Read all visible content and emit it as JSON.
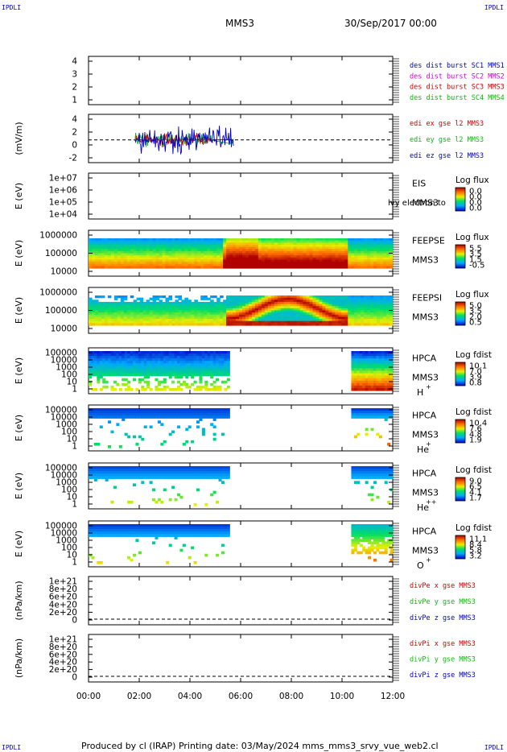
{
  "header": {
    "mark_tl": "IPDLI",
    "mark_tr": "IPDLI",
    "mark_bl": "IPDLI",
    "mark_br": "IPDLI",
    "spacecraft": "MMS3",
    "datetime": "30/Sep/2017 00:00"
  },
  "footer": {
    "text": "Produced by cl (IRAP)   Printing date: 03/May/2024   mms_mms3_srvy_vue_web2.cl"
  },
  "colors": {
    "red": "#d00000",
    "green": "#00c000",
    "blue": "#0000cc",
    "magenta": "#d000d0"
  },
  "chart_data": {
    "type": "heatmap",
    "x_axis": {
      "range": [
        "00:00",
        "12:00"
      ],
      "ticks": [
        "00:00",
        "02:00",
        "04:00",
        "06:00",
        "08:00",
        "10:00",
        "12:00"
      ]
    },
    "panels": [
      {
        "id": "des",
        "type": "line",
        "ylabel": "",
        "yticks": [
          "4",
          "3",
          "2",
          "1"
        ],
        "ylim": [
          0.7,
          4.3
        ],
        "legend": [
          {
            "label": "des dist burst SC1 MMS1",
            "color": "#0000cc"
          },
          {
            "label": "des dist burst SC2 MMS2",
            "color": "#d000d0"
          },
          {
            "label": "des dist burst SC3 MMS3",
            "color": "#d00000"
          },
          {
            "label": "des dist burst SC4 MMS4",
            "color": "#00c000"
          }
        ]
      },
      {
        "id": "edi",
        "type": "line",
        "ylabel": "(mV/m)",
        "yticks": [
          "4",
          "2",
          "0",
          "-2"
        ],
        "ylim": [
          -3.5,
          4.3
        ],
        "data_range": [
          "01:50",
          "05:55"
        ],
        "legend": [
          {
            "label": "edi ex gse l2 MMS3",
            "color": "#d00000"
          },
          {
            "label": "edi ey gse l2 MMS3",
            "color": "#00c000"
          },
          {
            "label": "edi ez gse l2 MMS3",
            "color": "#0000cc"
          }
        ]
      },
      {
        "id": "eis",
        "type": "heatmap",
        "ylabel": "E (eV)",
        "yticks": [
          "1e+07",
          "1e+06",
          "1e+05",
          "1e+04"
        ],
        "labels": [
          "EIS",
          "MMS3"
        ],
        "overlay_text": "lvy electron to",
        "colorbar": {
          "title": "Log flux",
          "ticks": [
            "0.0",
            "0.0",
            "0.0",
            "0.0"
          ]
        }
      },
      {
        "id": "feepse",
        "type": "heatmap",
        "ylabel": "E (eV)",
        "yticks": [
          "1000000",
          "100000",
          "10000"
        ],
        "labels": [
          "FEEPSE",
          "MMS3"
        ],
        "colorbar": {
          "title": "Log flux",
          "ticks": [
            "5.5",
            "3.5",
            "1.5",
            "-0.5"
          ]
        }
      },
      {
        "id": "feepsi",
        "type": "heatmap",
        "ylabel": "E (eV)",
        "yticks": [
          "1000000",
          "100000",
          "10000"
        ],
        "labels": [
          "FEEPSI",
          "MMS3"
        ],
        "colorbar": {
          "title": "Log flux",
          "ticks": [
            "5.0",
            "3.5",
            "2.0",
            "0.5"
          ]
        }
      },
      {
        "id": "hpca_h",
        "type": "heatmap",
        "ylabel": "E (eV)",
        "yticks": [
          "100000",
          "10000",
          "1000",
          "100",
          "10",
          "1"
        ],
        "labels": [
          "HPCA",
          "MMS3"
        ],
        "species": "H",
        "charge": "+",
        "data_range": [
          [
            "00:00",
            "05:35"
          ],
          [
            "10:20",
            "12:00"
          ]
        ],
        "colorbar": {
          "title": "Log fdist",
          "ticks": [
            "10.1",
            "7.0",
            "3.9",
            "0.8"
          ]
        }
      },
      {
        "id": "hpca_he",
        "type": "heatmap",
        "ylabel": "E (eV)",
        "yticks": [
          "100000",
          "10000",
          "1000",
          "100",
          "10",
          "1"
        ],
        "labels": [
          "HPCA",
          "MMS3"
        ],
        "species": "He",
        "charge": "+",
        "data_range": [
          [
            "00:00",
            "05:35"
          ],
          [
            "10:20",
            "12:00"
          ]
        ],
        "colorbar": {
          "title": "Log fdist",
          "ticks": [
            "10.4",
            "7.6",
            "4.8",
            "1.9"
          ]
        }
      },
      {
        "id": "hpca_he2",
        "type": "heatmap",
        "ylabel": "E (eV)",
        "yticks": [
          "100000",
          "10000",
          "1000",
          "100",
          "10",
          "1"
        ],
        "labels": [
          "HPCA",
          "MMS3"
        ],
        "species": "He",
        "charge": "++",
        "data_range": [
          [
            "00:00",
            "05:35"
          ],
          [
            "10:20",
            "12:00"
          ]
        ],
        "colorbar": {
          "title": "Log fdist",
          "ticks": [
            "9.0",
            "6.5",
            "4.1",
            "1.7"
          ]
        }
      },
      {
        "id": "hpca_o",
        "type": "heatmap",
        "ylabel": "E (eV)",
        "yticks": [
          "100000",
          "10000",
          "1000",
          "100",
          "10",
          "1"
        ],
        "labels": [
          "HPCA",
          "MMS3"
        ],
        "species": "O",
        "charge": "+",
        "data_range": [
          [
            "00:00",
            "05:35"
          ],
          [
            "10:20",
            "12:00"
          ]
        ],
        "colorbar": {
          "title": "Log fdist",
          "ticks": [
            "11.1",
            "8.4",
            "5.8",
            "3.2"
          ]
        }
      },
      {
        "id": "divpe",
        "type": "line",
        "ylabel": "(nPa/km)",
        "yticks": [
          "1e+21",
          "8e+20",
          "6e+20",
          "4e+20",
          "2e+20",
          "0"
        ],
        "ylim": [
          -1e+20,
          1.05e+21
        ],
        "legend": [
          {
            "label": "divPe x gse MMS3",
            "color": "#d00000"
          },
          {
            "label": "divPe y gse MMS3",
            "color": "#00c000"
          },
          {
            "label": "divPe z gse MMS3",
            "color": "#0000cc"
          }
        ]
      },
      {
        "id": "divpi",
        "type": "line",
        "ylabel": "(nPa/km)",
        "yticks": [
          "1e+21",
          "8e+20",
          "6e+20",
          "4e+20",
          "2e+20",
          "0"
        ],
        "ylim": [
          -1e+20,
          1.05e+21
        ],
        "legend": [
          {
            "label": "divPi x gse MMS3",
            "color": "#d00000"
          },
          {
            "label": "divPi y gse MMS3",
            "color": "#00c000"
          },
          {
            "label": "divPi z gse MMS3",
            "color": "#0000cc"
          }
        ]
      }
    ]
  }
}
